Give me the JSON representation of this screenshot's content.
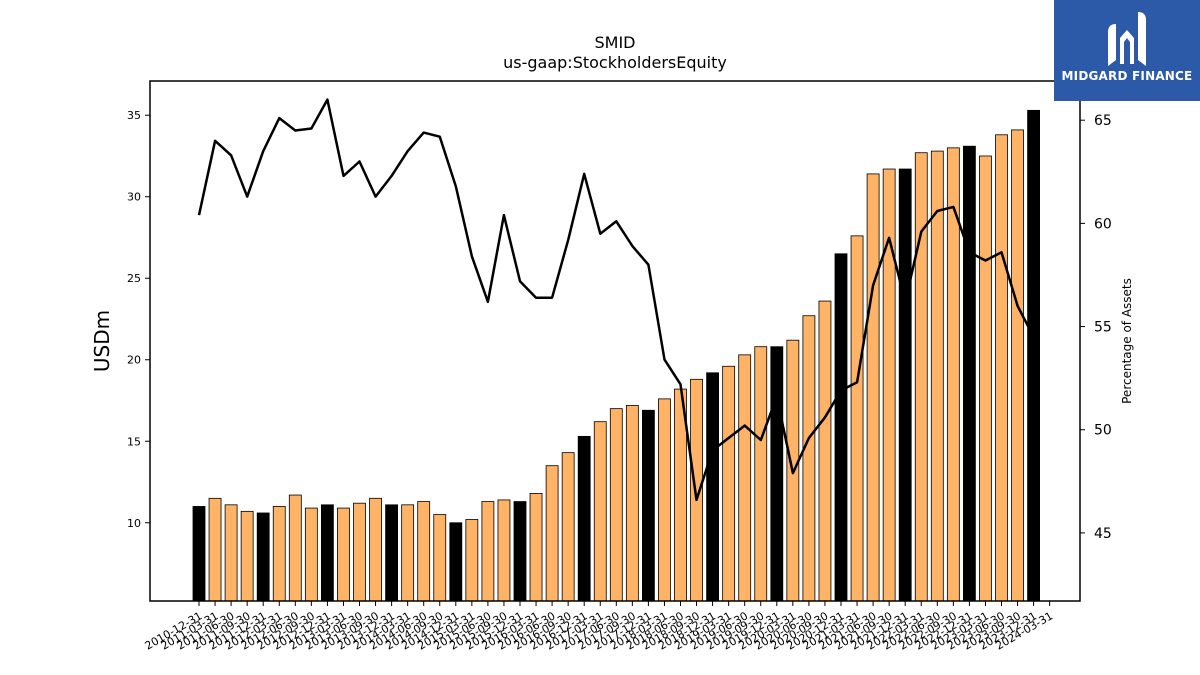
{
  "chart_data": {
    "type": "bar",
    "title": "SMID",
    "subtitle": "us-gaap:StockholdersEquity",
    "ylabel": "USDm",
    "y2label": "Percentage of Assets",
    "ylim": [
      5.2,
      37.1
    ],
    "y2lim": [
      41.7,
      66.9
    ],
    "yticks": [
      10,
      15,
      20,
      25,
      30,
      35
    ],
    "y2ticks": [
      45,
      50,
      55,
      60,
      65
    ],
    "grid": false,
    "categories": [
      "2010-12-31",
      "2011-03-31",
      "2011-06-30",
      "2011-09-30",
      "2011-12-31",
      "2012-03-31",
      "2012-06-30",
      "2012-09-30",
      "2012-12-31",
      "2013-03-31",
      "2013-06-30",
      "2013-09-30",
      "2013-12-31",
      "2014-03-31",
      "2014-06-30",
      "2014-09-30",
      "2014-12-31",
      "2015-03-31",
      "2015-06-30",
      "2015-09-30",
      "2015-12-31",
      "2016-03-31",
      "2016-06-30",
      "2016-09-30",
      "2016-12-31",
      "2017-03-31",
      "2017-06-30",
      "2017-09-30",
      "2017-12-31",
      "2018-03-31",
      "2018-06-30",
      "2018-09-30",
      "2018-12-31",
      "2019-03-31",
      "2019-06-30",
      "2019-09-30",
      "2019-12-31",
      "2020-03-31",
      "2020-06-30",
      "2020-09-30",
      "2020-12-31",
      "2021-03-31",
      "2021-06-30",
      "2021-09-30",
      "2021-12-31",
      "2022-03-31",
      "2022-06-30",
      "2022-09-30",
      "2022-12-31",
      "2023-03-31",
      "2023-06-30",
      "2023-09-30",
      "2023-12-31",
      "2024-03-31"
    ],
    "series": [
      {
        "type": "bar",
        "axis": "left",
        "values": [
          11.0,
          11.5,
          11.1,
          10.7,
          10.6,
          11.0,
          11.7,
          10.9,
          11.1,
          10.9,
          11.2,
          11.5,
          11.1,
          11.1,
          11.3,
          10.5,
          10.0,
          10.2,
          11.3,
          11.4,
          11.3,
          11.8,
          13.5,
          14.3,
          15.3,
          16.2,
          17.0,
          17.2,
          16.9,
          17.6,
          18.2,
          18.8,
          19.2,
          19.6,
          20.3,
          20.8,
          20.8,
          21.2,
          22.7,
          23.6,
          26.5,
          27.6,
          31.4,
          31.7,
          31.7,
          32.7,
          32.8,
          33.0,
          33.1,
          32.5,
          33.8,
          34.1,
          35.3,
          null
        ],
        "colors": {
          "year_end": "#000000",
          "quarter": "#ffb366"
        }
      },
      {
        "type": "line",
        "axis": "right",
        "color": "#000000",
        "values": [
          60.4,
          64.0,
          63.3,
          61.3,
          63.5,
          65.1,
          64.5,
          64.6,
          66.0,
          62.3,
          63.0,
          61.3,
          62.3,
          63.5,
          64.4,
          64.2,
          61.8,
          58.4,
          56.2,
          60.4,
          57.2,
          56.4,
          56.4,
          59.2,
          62.4,
          59.5,
          60.1,
          58.9,
          58.0,
          53.4,
          52.2,
          46.6,
          49.0,
          49.6,
          50.2,
          49.5,
          51.6,
          47.9,
          49.6,
          50.6,
          51.9,
          52.3,
          57.0,
          59.3,
          56.2,
          59.6,
          60.6,
          60.8,
          58.6,
          58.2,
          58.6,
          56.0,
          54.5,
          null
        ]
      }
    ]
  },
  "logo": {
    "text": "MIDGARD FINANCE",
    "colors": {
      "background": "#2c5aa8",
      "foreground": "#ffffff"
    }
  }
}
